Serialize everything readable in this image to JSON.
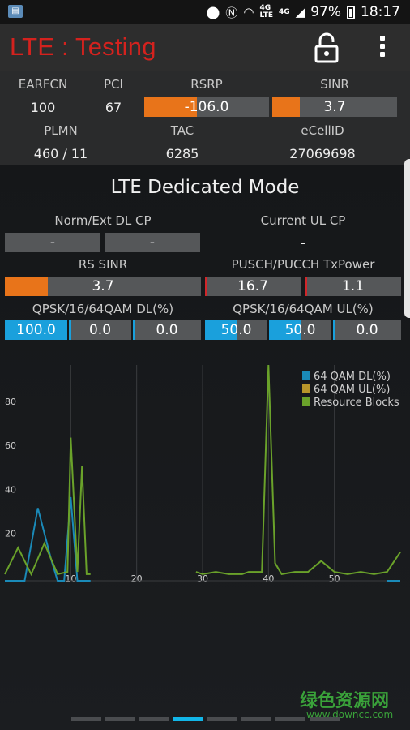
{
  "statusbar": {
    "network_4g_a": "4G",
    "network_4g_b": "4G",
    "network_lte": "LTE",
    "battery": "97%",
    "time": "18:17"
  },
  "appbar": {
    "title": "LTE : Testing"
  },
  "cell": {
    "earfcn_label": "EARFCN",
    "earfcn": "100",
    "pci_label": "PCI",
    "pci": "67",
    "rsrp_label": "RSRP",
    "rsrp": "-106.0",
    "rsrp_fill": 0.42,
    "sinr_label": "SINR",
    "sinr": "3.7",
    "sinr_fill": 0.22,
    "plmn_label": "PLMN",
    "plmn": "460 / 11",
    "tac_label": "TAC",
    "tac": "6285",
    "ecellid_label": "eCellID",
    "ecellid": "27069698"
  },
  "mode": {
    "title": "LTE Dedicated Mode",
    "dl_cp_label": "Norm/Ext DL CP",
    "dl_cp_a": "-",
    "dl_cp_b": "-",
    "ul_cp_label": "Current UL CP",
    "ul_cp": "-",
    "rs_sinr_label": "RS SINR",
    "rs_sinr": "3.7",
    "rs_sinr_fill": 0.22,
    "txpower_label": "PUSCH/PUCCH TxPower",
    "pusch": "16.7",
    "pucch": "1.1",
    "qam_dl_label": "QPSK/16/64QAM DL(%)",
    "qam_dl": [
      "100.0",
      "0.0",
      "0.0"
    ],
    "qam_dl_fill": [
      1.0,
      0.0,
      0.0
    ],
    "qam_ul_label": "QPSK/16/64QAM UL(%)",
    "qam_ul": [
      "50.0",
      "50.0",
      "0.0"
    ],
    "qam_ul_fill": [
      0.5,
      0.5,
      0.0
    ]
  },
  "chart_data": {
    "type": "line",
    "xlim": [
      0,
      60
    ],
    "ylim": [
      0,
      98
    ],
    "x_ticks": [
      "10",
      "20",
      "30",
      "40",
      "50"
    ],
    "y_ticks": [
      "20",
      "40",
      "60",
      "80"
    ],
    "legend_position": "top-right",
    "series": [
      {
        "name": "64 QAM DL(%)",
        "color": "#1a8ab8",
        "points": [
          [
            0,
            0
          ],
          [
            3,
            0
          ],
          [
            5,
            33
          ],
          [
            7,
            10
          ],
          [
            8,
            0
          ],
          [
            9,
            0
          ],
          [
            10,
            38
          ],
          [
            11,
            0
          ],
          [
            13,
            0
          ],
          [
            29,
            0
          ],
          [
            40,
            0
          ],
          [
            58,
            0
          ],
          [
            60,
            0
          ]
        ]
      },
      {
        "name": "64 QAM UL(%)",
        "color": "#b8962a",
        "points": [
          [
            0,
            0
          ],
          [
            13,
            0
          ],
          [
            29,
            0
          ],
          [
            60,
            0
          ]
        ]
      },
      {
        "name": "Resource Blocks",
        "color": "#6aa22a",
        "points": [
          [
            0,
            3
          ],
          [
            2,
            15
          ],
          [
            4,
            3
          ],
          [
            6,
            17
          ],
          [
            8,
            3
          ],
          [
            9.5,
            4
          ],
          [
            10,
            65
          ],
          [
            11,
            4
          ],
          [
            11.7,
            52
          ],
          [
            12.4,
            3
          ],
          [
            13,
            3
          ],
          [
            29,
            4
          ],
          [
            30,
            3
          ],
          [
            32,
            4
          ],
          [
            34,
            3
          ],
          [
            36,
            3
          ],
          [
            37,
            4
          ],
          [
            39,
            4
          ],
          [
            40,
            98
          ],
          [
            41,
            8
          ],
          [
            42,
            3
          ],
          [
            44,
            4
          ],
          [
            46,
            4
          ],
          [
            48,
            9
          ],
          [
            50,
            4
          ],
          [
            52,
            3
          ],
          [
            54,
            4
          ],
          [
            56,
            3
          ],
          [
            58,
            4
          ],
          [
            60,
            13
          ]
        ]
      }
    ]
  },
  "watermark": {
    "cn": "绿色资源网",
    "url": "www.downcc.com"
  },
  "pager": {
    "count": 10,
    "active": 3
  }
}
